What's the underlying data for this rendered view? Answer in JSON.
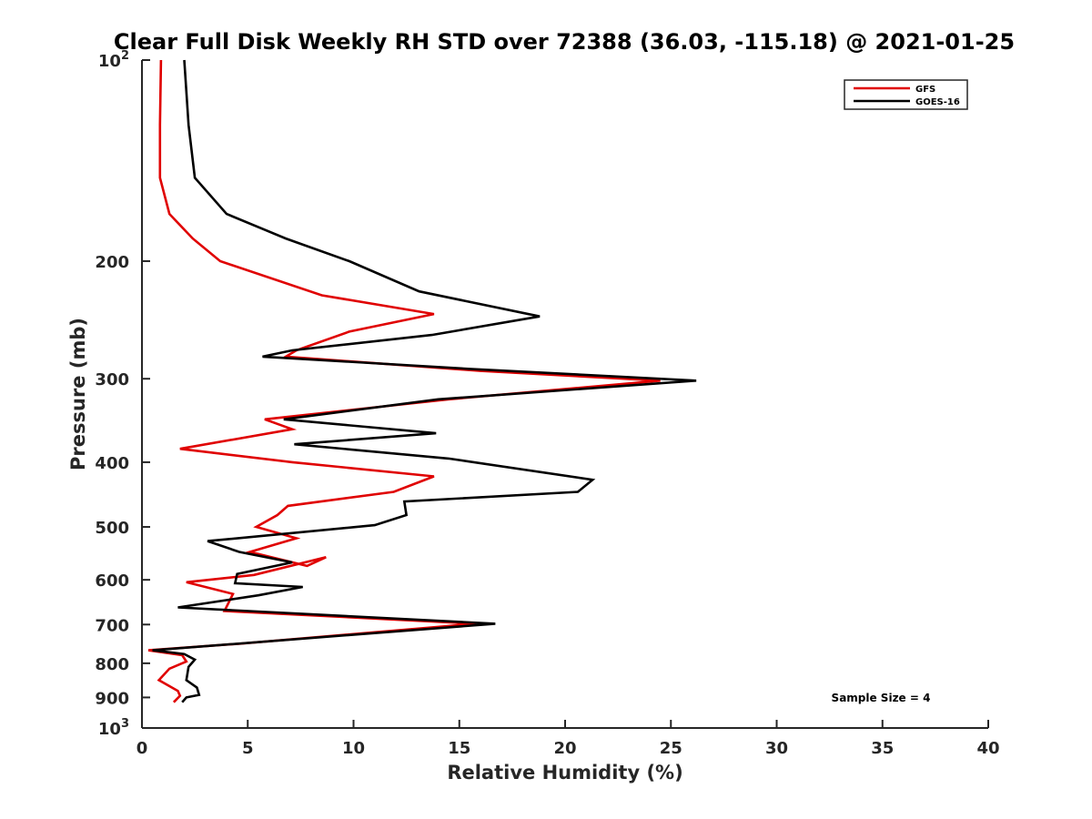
{
  "chart_data": {
    "type": "line",
    "title": "Clear Full Disk Weekly RH STD over 72388 (36.03, -115.18) @ 2021-01-25",
    "xlabel": "Relative Humidity (%)",
    "ylabel": "Pressure (mb)",
    "xlim": [
      0,
      40
    ],
    "ylim": [
      100,
      1000
    ],
    "yscale": "log",
    "y_reversed": true,
    "x_ticks": [
      "0",
      "5",
      "10",
      "15",
      "20",
      "25",
      "30",
      "35",
      "40"
    ],
    "y_ticks": [
      {
        "value": 100,
        "base": "10",
        "exp": "2"
      },
      {
        "value": 200,
        "label": "200"
      },
      {
        "value": 300,
        "label": "300"
      },
      {
        "value": 400,
        "label": "400"
      },
      {
        "value": 500,
        "label": "500"
      },
      {
        "value": 600,
        "label": "600"
      },
      {
        "value": 700,
        "label": "700"
      },
      {
        "value": 800,
        "label": "800"
      },
      {
        "value": 900,
        "label": "900"
      },
      {
        "value": 1000,
        "base": "10",
        "exp": "3"
      }
    ],
    "grid": false,
    "legend_position": "top-right",
    "annotation": "Sample Size = 4",
    "series": [
      {
        "name": "GFS",
        "color": "#e00000",
        "points": [
          [
            0.9,
            100
          ],
          [
            0.85,
            125
          ],
          [
            0.85,
            150
          ],
          [
            1.3,
            170
          ],
          [
            2.4,
            185
          ],
          [
            3.7,
            200
          ],
          [
            8.5,
            225
          ],
          [
            13.8,
            240
          ],
          [
            9.8,
            255
          ],
          [
            7.3,
            272
          ],
          [
            6.8,
            278
          ],
          [
            16,
            292
          ],
          [
            24.5,
            302
          ],
          [
            14.5,
            322
          ],
          [
            5.8,
            345
          ],
          [
            7.1,
            357
          ],
          [
            1.8,
            382
          ],
          [
            7.1,
            400
          ],
          [
            13.8,
            420
          ],
          [
            11.9,
            443
          ],
          [
            6.9,
            465
          ],
          [
            6.4,
            480
          ],
          [
            5.4,
            500
          ],
          [
            7.3,
            520
          ],
          [
            5.1,
            545
          ],
          [
            7.8,
            572
          ],
          [
            8.7,
            555
          ],
          [
            5.3,
            590
          ],
          [
            2.1,
            605
          ],
          [
            4.3,
            630
          ],
          [
            3.9,
            668
          ],
          [
            15.8,
            698
          ],
          [
            4.6,
            748
          ],
          [
            0.3,
            765
          ],
          [
            1.9,
            778
          ],
          [
            2.1,
            795
          ],
          [
            1.3,
            815
          ],
          [
            0.8,
            848
          ],
          [
            1.7,
            880
          ],
          [
            1.8,
            895
          ],
          [
            1.5,
            915
          ]
        ]
      },
      {
        "name": "GOES-16",
        "color": "#000000",
        "points": [
          [
            2.0,
            100
          ],
          [
            2.2,
            125
          ],
          [
            2.5,
            150
          ],
          [
            4.0,
            170
          ],
          [
            6.8,
            185
          ],
          [
            9.8,
            200
          ],
          [
            13.1,
            222
          ],
          [
            18.8,
            242
          ],
          [
            13.7,
            258
          ],
          [
            7.1,
            272
          ],
          [
            5.7,
            278
          ],
          [
            15.5,
            290
          ],
          [
            26.2,
            302
          ],
          [
            14.0,
            322
          ],
          [
            6.7,
            345
          ],
          [
            13.9,
            362
          ],
          [
            7.2,
            376
          ],
          [
            14.5,
            395
          ],
          [
            21.3,
            425
          ],
          [
            20.6,
            443
          ],
          [
            12.4,
            458
          ],
          [
            12.5,
            480
          ],
          [
            11.0,
            497
          ],
          [
            3.1,
            525
          ],
          [
            4.6,
            545
          ],
          [
            7.1,
            565
          ],
          [
            4.5,
            588
          ],
          [
            4.4,
            607
          ],
          [
            7.6,
            615
          ],
          [
            5.5,
            633
          ],
          [
            1.7,
            660
          ],
          [
            16.7,
            698
          ],
          [
            4.5,
            748
          ],
          [
            0.5,
            765
          ],
          [
            2.0,
            775
          ],
          [
            2.5,
            790
          ],
          [
            2.2,
            810
          ],
          [
            2.1,
            848
          ],
          [
            2.6,
            870
          ],
          [
            2.7,
            892
          ],
          [
            2.1,
            900
          ],
          [
            1.9,
            915
          ]
        ]
      }
    ]
  }
}
